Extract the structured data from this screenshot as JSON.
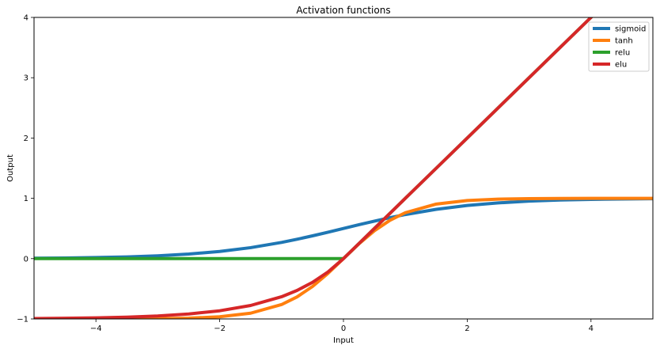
{
  "chart_data": {
    "type": "line",
    "title": "Activation functions",
    "xlabel": "Input",
    "ylabel": "Output",
    "xlim": [
      -5,
      5
    ],
    "ylim": [
      -1,
      4
    ],
    "xticks": [
      -4,
      -2,
      0,
      2,
      4
    ],
    "yticks": [
      -1,
      0,
      1,
      2,
      3,
      4
    ],
    "x_tick_labels": [
      "−4",
      "−2",
      "0",
      "2",
      "4"
    ],
    "y_tick_labels": [
      "−1",
      "0",
      "1",
      "2",
      "3",
      "4"
    ],
    "grid": false,
    "legend_position": "top-right",
    "x": [
      -5,
      -4.5,
      -4,
      -3.5,
      -3,
      -2.5,
      -2,
      -1.5,
      -1,
      -0.75,
      -0.5,
      -0.25,
      0,
      0.25,
      0.5,
      0.75,
      1,
      1.5,
      2,
      2.5,
      3,
      3.5,
      4,
      4.5,
      5
    ],
    "series": [
      {
        "name": "sigmoid",
        "color": "#1f77b4",
        "values": [
          0.007,
          0.011,
          0.018,
          0.029,
          0.047,
          0.076,
          0.119,
          0.182,
          0.269,
          0.321,
          0.378,
          0.438,
          0.5,
          0.562,
          0.622,
          0.679,
          0.731,
          0.818,
          0.881,
          0.924,
          0.953,
          0.971,
          0.982,
          0.989,
          0.993
        ]
      },
      {
        "name": "tanh",
        "color": "#ff7f0e",
        "values": [
          -1.0,
          -1.0,
          -0.999,
          -0.998,
          -0.995,
          -0.987,
          -0.964,
          -0.905,
          -0.762,
          -0.635,
          -0.462,
          -0.245,
          0,
          0.245,
          0.462,
          0.635,
          0.762,
          0.905,
          0.964,
          0.987,
          0.995,
          0.998,
          0.999,
          1.0,
          1.0
        ]
      },
      {
        "name": "relu",
        "color": "#2ca02c",
        "values": [
          0,
          0,
          0,
          0,
          0,
          0,
          0,
          0,
          0,
          0,
          0,
          0,
          0,
          0.25,
          0.5,
          0.75,
          1,
          1.5,
          2,
          2.5,
          3,
          3.5,
          4,
          4.5,
          5
        ]
      },
      {
        "name": "elu",
        "color": "#d62728",
        "values": [
          -0.993,
          -0.989,
          -0.982,
          -0.97,
          -0.95,
          -0.918,
          -0.865,
          -0.777,
          -0.632,
          -0.528,
          -0.393,
          -0.221,
          0,
          0.25,
          0.5,
          0.75,
          1,
          1.5,
          2,
          2.5,
          3,
          3.5,
          4,
          4.5,
          5
        ]
      }
    ]
  }
}
